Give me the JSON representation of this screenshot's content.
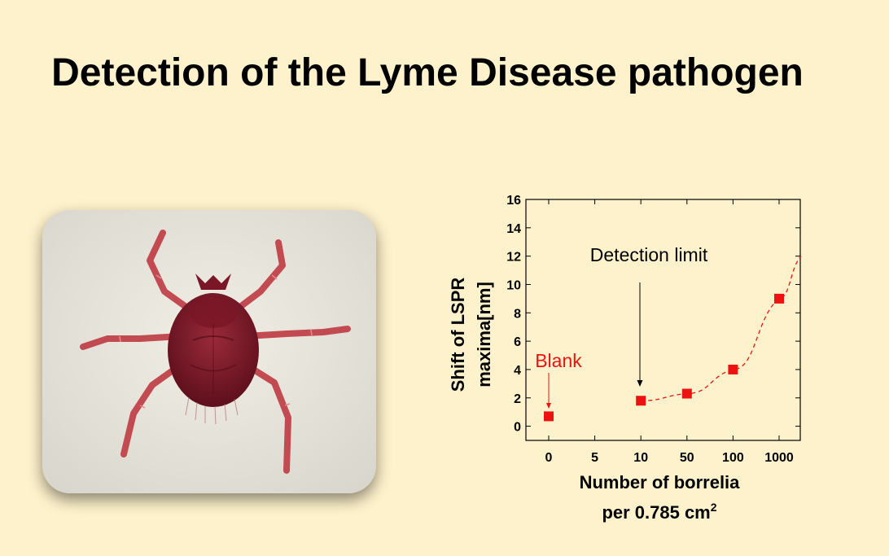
{
  "slide": {
    "title": "Detection of the Lyme Disease pathogen"
  },
  "image": {
    "subject": "tick-illustration"
  },
  "chart_data": {
    "type": "scatter",
    "x_axis": {
      "label_line1": "Number of borrelia",
      "label_line2": "per 0.785 cm",
      "label_superscript": "2",
      "tick_labels": [
        "0",
        "5",
        "10",
        "50",
        "100",
        "1000"
      ],
      "scale": "categorical"
    },
    "y_axis": {
      "label_line1": "Shift of LSPR",
      "label_line2": "maxima[nm]",
      "ylim": [
        -1,
        16
      ],
      "ticks": [
        0,
        2,
        4,
        6,
        8,
        10,
        12,
        14,
        16
      ]
    },
    "series": [
      {
        "points": [
          {
            "x": "0",
            "y": 0.7
          },
          {
            "x": "10",
            "y": 1.8
          },
          {
            "x": "50",
            "y": 2.3
          },
          {
            "x": "100",
            "y": 4.0
          },
          {
            "x": "1000",
            "y": 9.0
          }
        ],
        "color": "#ee1111",
        "marker": "square",
        "fit_line": "dashed"
      }
    ],
    "annotations": [
      {
        "text": "Detection limit",
        "color": "#000000",
        "points_to": "10"
      },
      {
        "text": "Blank",
        "color": "#ee1111",
        "points_to": "0"
      }
    ],
    "grid": false,
    "legend": "none"
  }
}
